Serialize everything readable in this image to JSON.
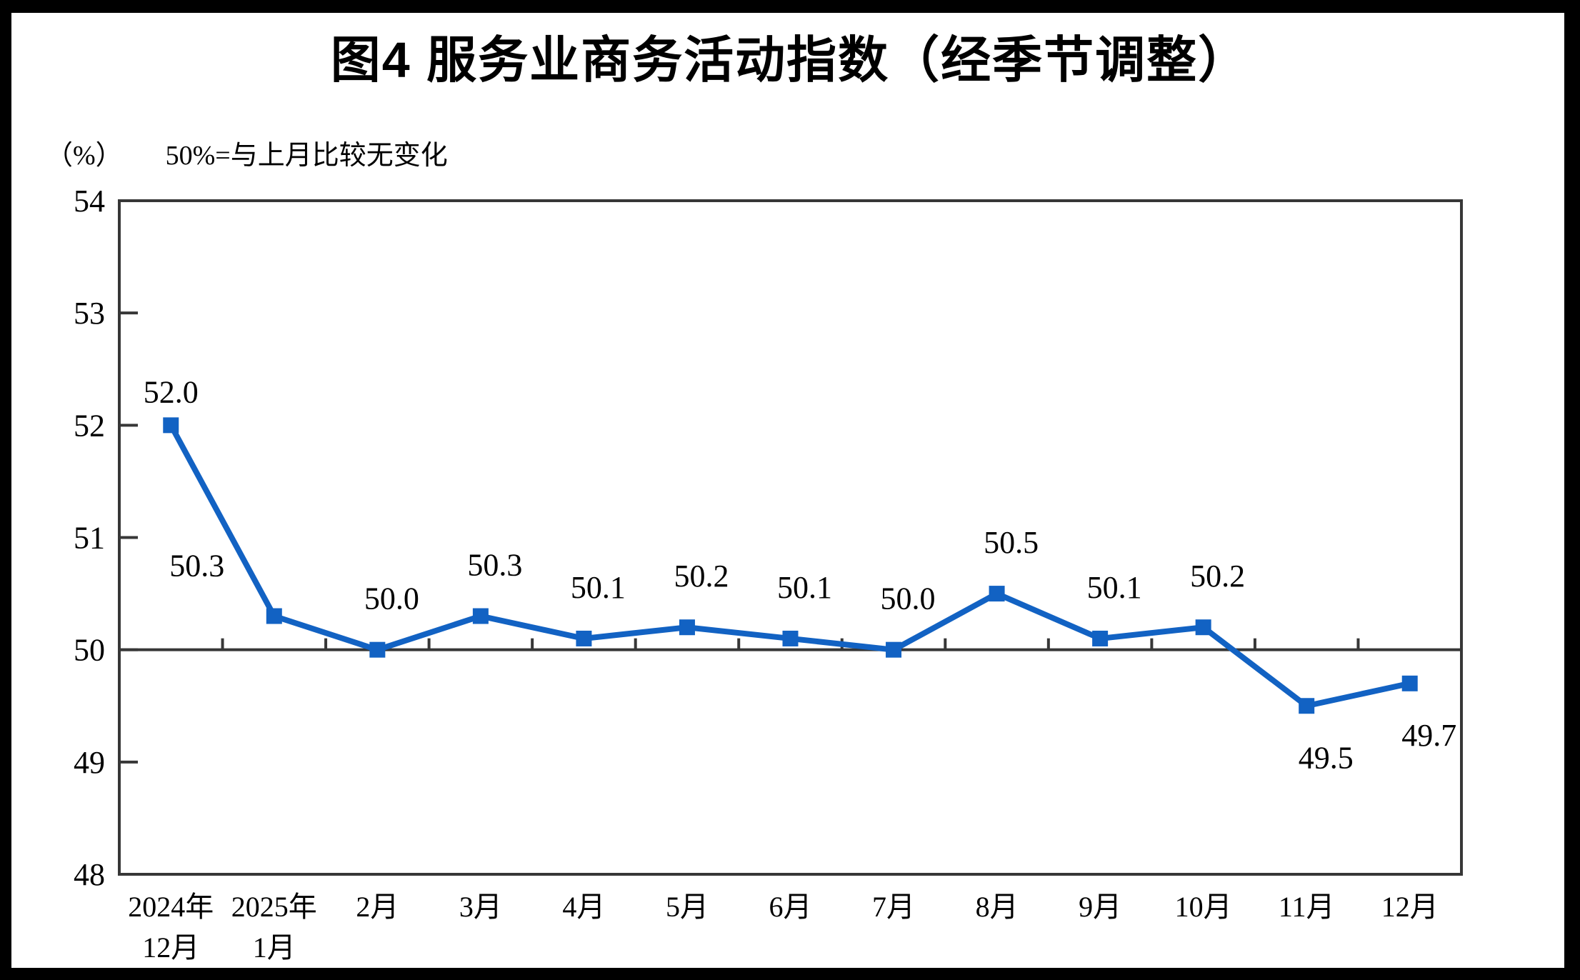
{
  "chart_data": {
    "type": "line",
    "title": "图4  服务业商务活动指数（经季节调整）",
    "unit_label": "（%）",
    "note": "50%=与上月比较无变化",
    "categories": [
      [
        "2024年",
        "12月"
      ],
      [
        "2025年",
        "1月"
      ],
      [
        "2月"
      ],
      [
        "3月"
      ],
      [
        "4月"
      ],
      [
        "5月"
      ],
      [
        "6月"
      ],
      [
        "7月"
      ],
      [
        "8月"
      ],
      [
        "9月"
      ],
      [
        "10月"
      ],
      [
        "11月"
      ],
      [
        "12月"
      ]
    ],
    "values": [
      52.0,
      50.3,
      50.0,
      50.3,
      50.1,
      50.2,
      50.1,
      50.0,
      50.5,
      50.1,
      50.2,
      49.5,
      49.7
    ],
    "data_labels": [
      "52.0",
      "50.3",
      "50.0",
      "50.3",
      "50.1",
      "50.2",
      "50.1",
      "50.0",
      "50.5",
      "50.1",
      "50.2",
      "49.5",
      "49.7"
    ],
    "label_placement": [
      "above-near",
      "above-left",
      "above",
      "above",
      "above",
      "above",
      "above",
      "above",
      "above",
      "above",
      "above",
      "below",
      "below"
    ],
    "ylim": [
      48,
      54
    ],
    "y_ticks": [
      54,
      53,
      52,
      51,
      50,
      49,
      48
    ],
    "baseline_value": 50,
    "xlabel": "",
    "ylabel": "%",
    "grid": false,
    "legend": "none",
    "marker": "square",
    "line_color": "#1262C3",
    "axis_color": "#373737",
    "text_color": "#000000",
    "background": "#FFFFFF",
    "frame_color": "#000000"
  }
}
